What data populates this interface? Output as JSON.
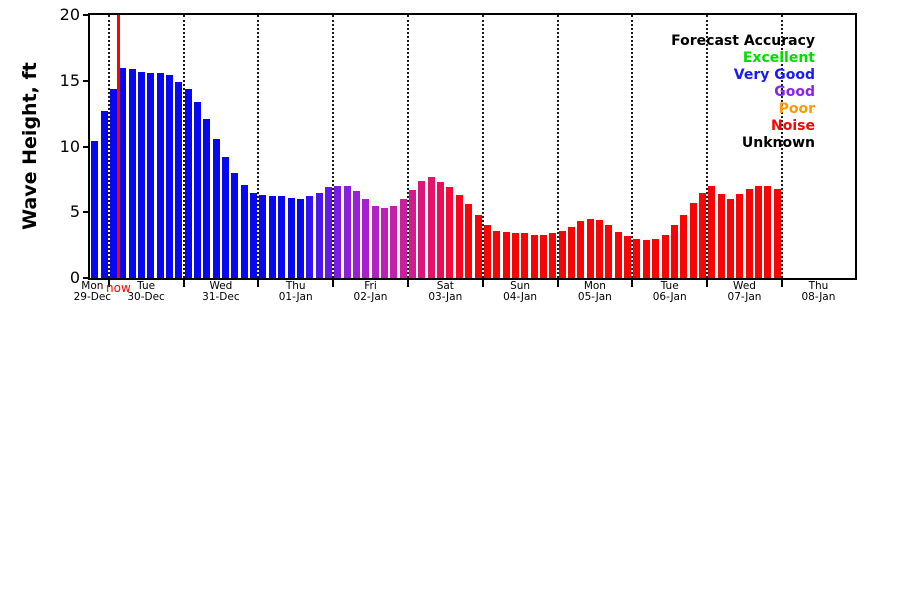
{
  "chart_data": {
    "type": "bar",
    "title": "",
    "ylabel": "Wave Height, ft",
    "ylim": [
      0,
      20
    ],
    "yticks": [
      0,
      5,
      10,
      15,
      20
    ],
    "grid": "vertical-dotted-day-boundaries",
    "frame": true,
    "bars_before_first_boundary": 2,
    "bars_per_day": 8,
    "x_day_labels": [
      {
        "day": "Mon",
        "date": "29-Dec"
      },
      {
        "day": "Tue",
        "date": "30-Dec"
      },
      {
        "day": "Wed",
        "date": "31-Dec"
      },
      {
        "day": "Thu",
        "date": "01-Jan"
      },
      {
        "day": "Fri",
        "date": "02-Jan"
      },
      {
        "day": "Sat",
        "date": "03-Jan"
      },
      {
        "day": "Sun",
        "date": "04-Jan"
      },
      {
        "day": "Mon",
        "date": "05-Jan"
      },
      {
        "day": "Tue",
        "date": "06-Jan"
      },
      {
        "day": "Wed",
        "date": "07-Jan"
      },
      {
        "day": "Thu",
        "date": "08-Jan"
      }
    ],
    "values": [
      10.4,
      12.7,
      14.4,
      16.0,
      15.9,
      15.7,
      15.6,
      15.6,
      15.4,
      14.9,
      14.4,
      13.4,
      12.1,
      10.6,
      9.2,
      8.0,
      7.1,
      6.5,
      6.3,
      6.2,
      6.2,
      6.1,
      6.0,
      6.2,
      6.5,
      6.9,
      7.0,
      7.0,
      6.6,
      6.0,
      5.5,
      5.3,
      5.5,
      6.0,
      6.7,
      7.4,
      7.7,
      7.3,
      6.9,
      6.3,
      5.6,
      4.8,
      4.0,
      3.6,
      3.5,
      3.4,
      3.4,
      3.3,
      3.3,
      3.4,
      3.6,
      3.9,
      4.3,
      4.5,
      4.4,
      4.0,
      3.5,
      3.2,
      3.0,
      2.9,
      3.0,
      3.3,
      4.0,
      4.8,
      5.7,
      6.5,
      7.0,
      6.4,
      6.0,
      6.4,
      6.8,
      7.0,
      7.0,
      6.8
    ],
    "colors": [
      "#0808f0",
      "#0808f0",
      "#0808f0",
      "#0808f0",
      "#0808f0",
      "#0808f0",
      "#0808f0",
      "#0808f0",
      "#0808f0",
      "#0808f0",
      "#0808f0",
      "#0808f0",
      "#0808f0",
      "#0808f0",
      "#0808f0",
      "#0808f0",
      "#0808f0",
      "#0808f0",
      "#0808f0",
      "#0808f0",
      "#0808f0",
      "#0808f0",
      "#0808f0",
      "#3311f2",
      "#4d15ee",
      "#6419e9",
      "#781ce3",
      "#8a1edd",
      "#9920d5",
      "#a621cc",
      "#b121c2",
      "#bb20b6",
      "#c41faa",
      "#cc1d9c",
      "#d41a8d",
      "#dc177c",
      "#e41369",
      "#ec0e54",
      "#f4093b",
      "#fb041f",
      "#f50505",
      "#f50505",
      "#f50505",
      "#f50505",
      "#f50505",
      "#f50505",
      "#f50505",
      "#f50505",
      "#f50505",
      "#f50505",
      "#f50505",
      "#f50505",
      "#f50505",
      "#f50505",
      "#f50505",
      "#f50505",
      "#f50505",
      "#f50505",
      "#f50505",
      "#f50505",
      "#f50505",
      "#f50505",
      "#f50505",
      "#f50505",
      "#f50505",
      "#f50505",
      "#f50505",
      "#f50505",
      "#f50505",
      "#f50505",
      "#f50505",
      "#f50505",
      "#f50505",
      "#f50505"
    ],
    "now_line": {
      "label": "now",
      "color": "#ff0000",
      "position_bar_index": 3
    },
    "legend": {
      "title": "Forecast Accuracy",
      "title_color": "#000000",
      "entries": [
        {
          "label": "Excellent",
          "color": "#00dd00"
        },
        {
          "label": "Very Good",
          "color": "#1a1af5"
        },
        {
          "label": "Good",
          "color": "#8822ee"
        },
        {
          "label": "Poor",
          "color": "#ff9900"
        },
        {
          "label": "Noise",
          "color": "#f50505"
        },
        {
          "label": "Unknown",
          "color": "#000000"
        }
      ]
    }
  }
}
